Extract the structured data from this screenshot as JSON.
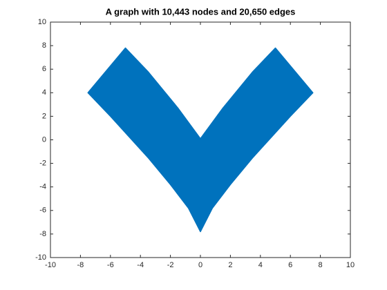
{
  "chart_data": {
    "type": "graph",
    "title": "A graph with 10,443 nodes and 20,650 edges",
    "color": "#0072bd",
    "regions": [
      {
        "x": [
          -7.5,
          -5,
          -3.5,
          -1.5,
          0,
          1.5,
          3.5,
          5,
          7.5,
          6,
          3.5,
          2,
          0.8,
          0,
          -0.8,
          -2,
          -3.5,
          -6
        ],
        "y": [
          4,
          7.8,
          5.8,
          2.7,
          0.1,
          2.7,
          5.8,
          7.8,
          4,
          2,
          -1.5,
          -3.8,
          -5.8,
          -7.8,
          -5.8,
          -3.8,
          -1.5,
          2
        ]
      }
    ],
    "xlim": [
      -10,
      10
    ],
    "ylim": [
      -10,
      10
    ],
    "xticks": [
      -10,
      -8,
      -6,
      -4,
      -2,
      0,
      2,
      4,
      6,
      8,
      10
    ],
    "yticks": [
      -10,
      -8,
      -6,
      -4,
      -2,
      0,
      2,
      4,
      6,
      8,
      10
    ],
    "grid": false
  }
}
